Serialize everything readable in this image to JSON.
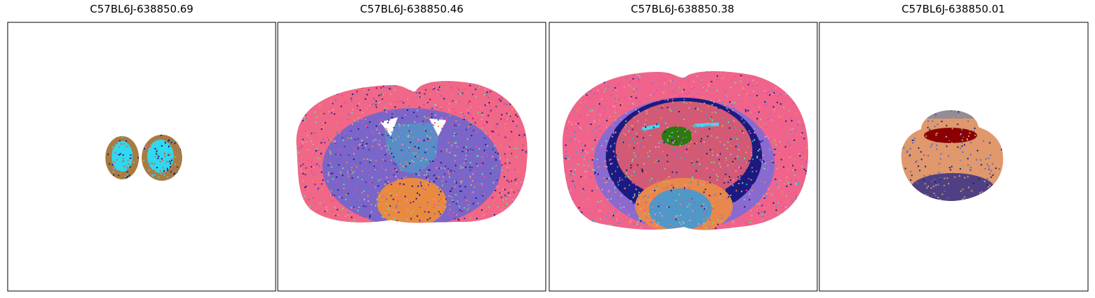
{
  "panels": [
    {
      "title": "C57BL6J-638850.69"
    },
    {
      "title": "C57BL6J-638850.46"
    },
    {
      "title": "C57BL6J-638850.38"
    },
    {
      "title": "C57BL6J-638850.01"
    }
  ]
}
